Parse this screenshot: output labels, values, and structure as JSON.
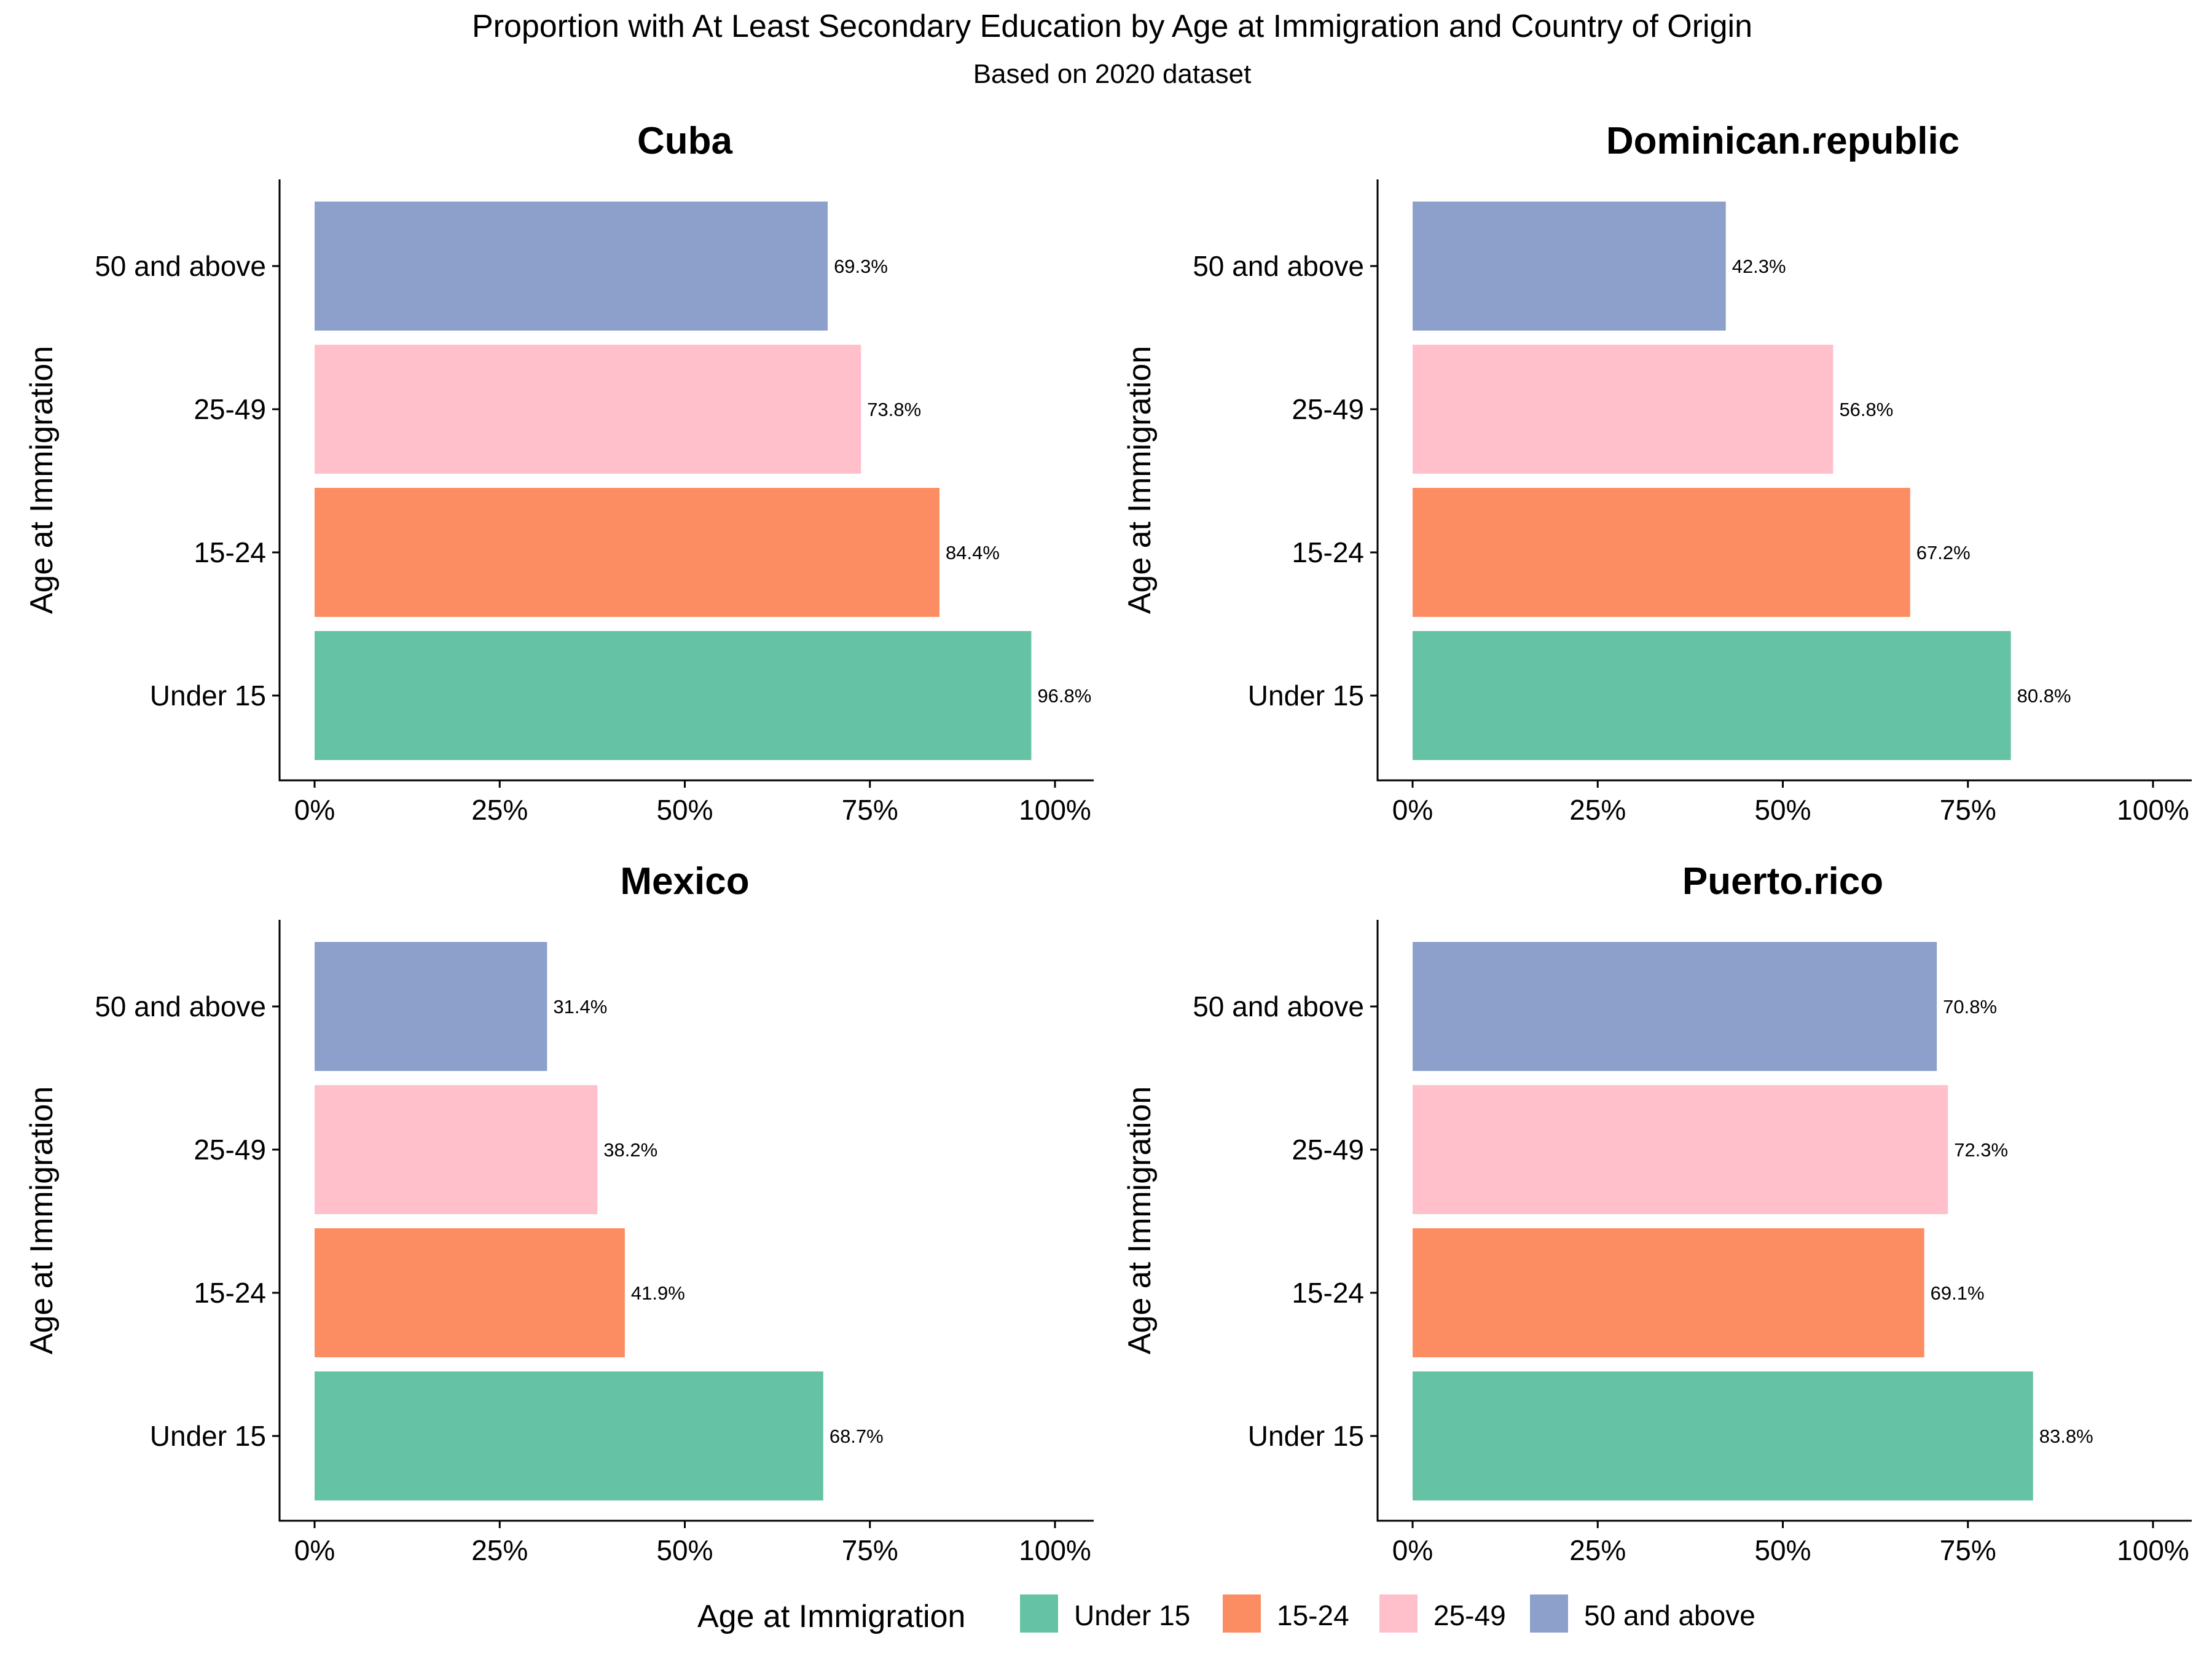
{
  "chart_data": {
    "type": "bar",
    "orientation": "horizontal",
    "title": "Proportion with At Least Secondary Education by Age at Immigration and Country of Origin",
    "subtitle": "Based on 2020 dataset",
    "ylabel": "Age at Immigration",
    "categories": [
      "Under 15",
      "15-24",
      "25-49",
      "50 and above"
    ],
    "x_ticks": [
      "0%",
      "25%",
      "50%",
      "75%",
      "100%"
    ],
    "xlim": [
      0,
      1
    ],
    "grid": false,
    "colors": {
      "Under 15": "#66C2A5",
      "15-24": "#FC8D62",
      "25-49": "#FFC0CB",
      "50 and above": "#8DA0CB"
    },
    "facets": [
      {
        "name": "Cuba",
        "values": [
          0.968,
          0.844,
          0.738,
          0.693
        ],
        "labels": [
          "96.8%",
          "84.4%",
          "73.8%",
          "69.3%"
        ]
      },
      {
        "name": "Dominican.republic",
        "values": [
          0.808,
          0.672,
          0.568,
          0.423
        ],
        "labels": [
          "80.8%",
          "67.2%",
          "56.8%",
          "42.3%"
        ]
      },
      {
        "name": "Mexico",
        "values": [
          0.687,
          0.419,
          0.382,
          0.314
        ],
        "labels": [
          "68.7%",
          "41.9%",
          "38.2%",
          "31.4%"
        ]
      },
      {
        "name": "Puerto.rico",
        "values": [
          0.838,
          0.691,
          0.723,
          0.708
        ],
        "labels": [
          "83.8%",
          "69.1%",
          "72.3%",
          "70.8%"
        ]
      }
    ],
    "legend": {
      "title": "Age at Immigration",
      "position": "bottom",
      "items": [
        "Under 15",
        "15-24",
        "25-49",
        "50 and above"
      ]
    }
  }
}
